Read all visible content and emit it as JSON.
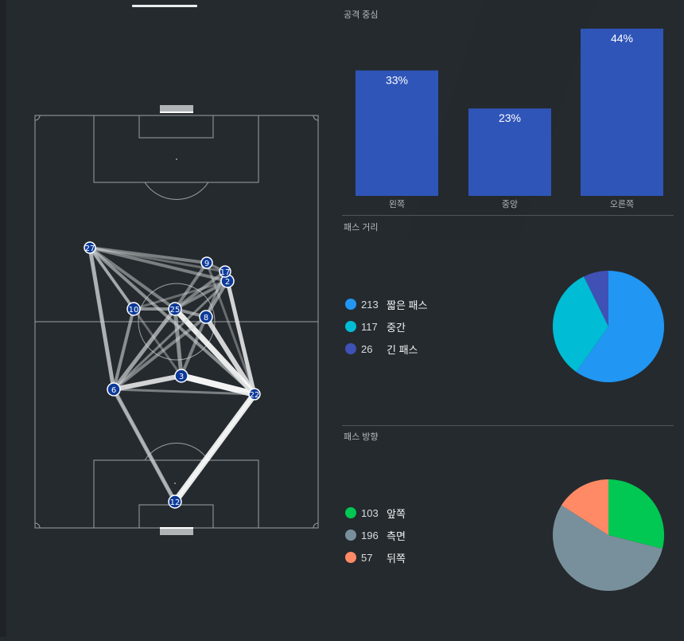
{
  "attack_focus": {
    "title": "공격 중심",
    "bars": [
      {
        "label": "왼쪽",
        "value": 33,
        "display": "33%"
      },
      {
        "label": "중앙",
        "value": 23,
        "display": "23%"
      },
      {
        "label": "오른쪽",
        "value": 44,
        "display": "44%"
      }
    ],
    "bar_color": "#2f55b8"
  },
  "pass_distance": {
    "title": "패스 거리",
    "items": [
      {
        "count": "213",
        "label": "짧은 패스",
        "color": "#2196f3"
      },
      {
        "count": "117",
        "label": "중간",
        "color": "#00bcd4"
      },
      {
        "count": "26",
        "label": "긴 패스",
        "color": "#3f51b5"
      }
    ]
  },
  "pass_direction": {
    "title": "패스 방향",
    "items": [
      {
        "count": "103",
        "label": "앞쪽",
        "color": "#00c853"
      },
      {
        "count": "196",
        "label": "측면",
        "color": "#78909c"
      },
      {
        "count": "57",
        "label": "뒤쪽",
        "color": "#ff8a65"
      }
    ]
  },
  "players": [
    {
      "number": "12"
    },
    {
      "number": "2"
    },
    {
      "number": "3"
    },
    {
      "number": "6"
    },
    {
      "number": "8"
    },
    {
      "number": "10"
    },
    {
      "number": "25"
    },
    {
      "number": "9"
    },
    {
      "number": "17"
    },
    {
      "number": "22"
    },
    {
      "number": "27"
    }
  ]
}
